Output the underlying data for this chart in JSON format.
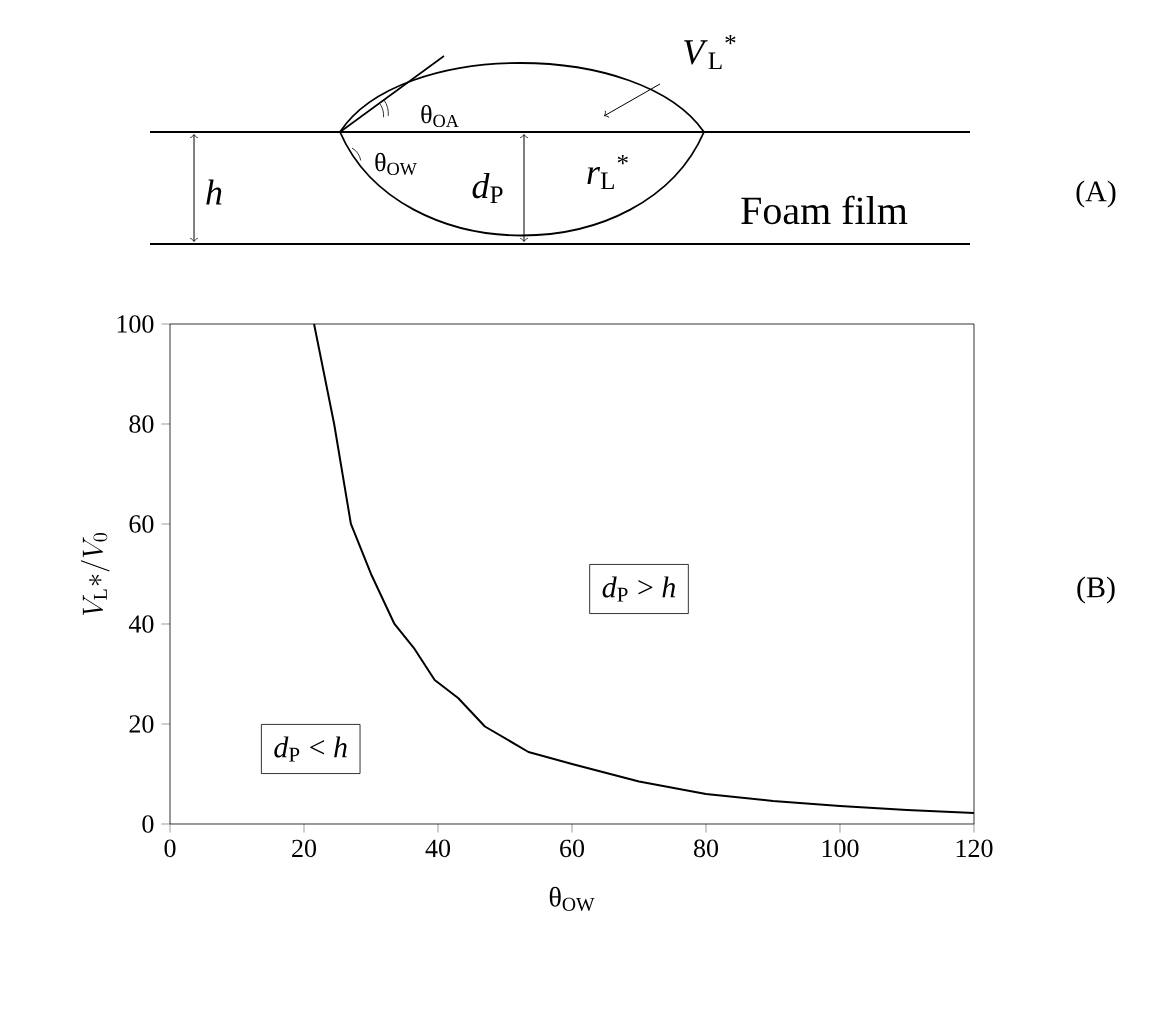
{
  "chart_data": {
    "type": "line",
    "xlabel": "θ$_{OW}$",
    "ylabel": "V_\\mathrm{L}{*}/V_0",
    "x": [
      21.5,
      24.5,
      27,
      30,
      33.5,
      36.5,
      39.5,
      43,
      47,
      53.5,
      60,
      70,
      80,
      90,
      100,
      110,
      120
    ],
    "series": [
      {
        "color": "#000000",
        "values": [
          100,
          80,
          60,
          50,
          40,
          35,
          28.8,
          25.2,
          19.5,
          14.4,
          12,
          8.5,
          6,
          4.6,
          3.6,
          2.8,
          2.2
        ]
      }
    ],
    "xlim": [
      0,
      120
    ],
    "ylim": [
      0,
      100
    ],
    "xticks": [
      0,
      20,
      40,
      60,
      80,
      100,
      120
    ],
    "yticks": [
      0,
      20,
      40,
      60,
      80,
      100
    ],
    "marker": "none",
    "line_style": "solid",
    "grid": false,
    "annotations": [
      "*d*$_{P}$ > *h*",
      "*d*$_{P}$ < *h*",
      "(B)",
      "(A)",
      "Foam film",
      "*h*",
      "*d*$_{P}$",
      "*r*$_{L}$$^{*}$",
      "*V*$_{L}$$^{*}$",
      "θ$_{OA}$",
      "θ$_{OW}$"
    ]
  }
}
